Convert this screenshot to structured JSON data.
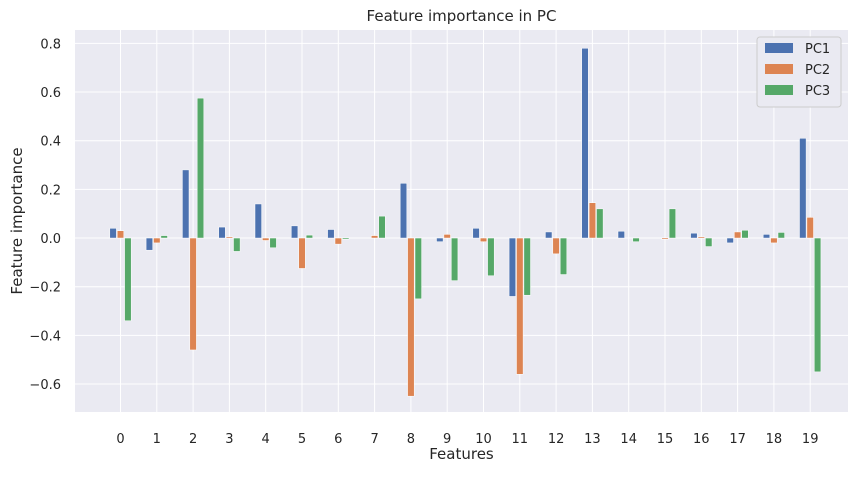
{
  "chart_data": {
    "type": "bar",
    "title": "Feature importance in PC",
    "xlabel": "Features",
    "ylabel": "Feature importance",
    "categories": [
      "0",
      "1",
      "2",
      "3",
      "4",
      "5",
      "6",
      "7",
      "8",
      "9",
      "10",
      "11",
      "12",
      "13",
      "14",
      "15",
      "16",
      "17",
      "18",
      "19"
    ],
    "yticks": [
      0.8,
      0.6,
      0.4,
      0.2,
      0.0,
      -0.2,
      -0.4,
      -0.6
    ],
    "ytick_labels": [
      "0.8",
      "0.6",
      "0.4",
      "0.2",
      "0.0",
      "−0.2",
      "−0.4",
      "−0.6"
    ],
    "ylim": [
      -0.715,
      0.855
    ],
    "grid": true,
    "legend_position": "top-right",
    "series": [
      {
        "name": "PC1",
        "color": "#4c72b0",
        "values": [
          0.04,
          -0.05,
          0.28,
          0.045,
          0.14,
          0.05,
          0.035,
          0.0,
          0.225,
          -0.015,
          0.04,
          -0.24,
          0.025,
          0.78,
          0.028,
          0.0,
          0.02,
          -0.02,
          0.015,
          0.41
        ]
      },
      {
        "name": "PC2",
        "color": "#dd8452",
        "values": [
          0.03,
          -0.02,
          -0.46,
          0.005,
          -0.01,
          -0.125,
          -0.025,
          0.01,
          -0.65,
          0.015,
          -0.015,
          -0.56,
          -0.065,
          0.145,
          0.0,
          -0.005,
          0.005,
          0.025,
          -0.02,
          0.085
        ]
      },
      {
        "name": "PC3",
        "color": "#55a868",
        "values": [
          -0.34,
          0.01,
          0.575,
          -0.055,
          -0.04,
          0.012,
          -0.005,
          0.09,
          -0.25,
          -0.175,
          -0.155,
          -0.235,
          -0.15,
          0.12,
          -0.015,
          0.12,
          -0.035,
          0.032,
          0.023,
          -0.55
        ]
      }
    ]
  }
}
